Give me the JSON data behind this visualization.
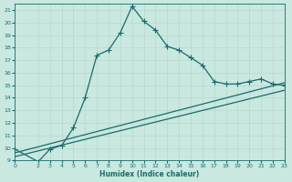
{
  "xlabel": "Humidex (Indice chaleur)",
  "xlim": [
    0,
    23
  ],
  "ylim": [
    9,
    21.5
  ],
  "yticks": [
    9,
    10,
    11,
    12,
    13,
    14,
    15,
    16,
    17,
    18,
    19,
    20,
    21
  ],
  "xticks": [
    0,
    2,
    3,
    4,
    5,
    6,
    7,
    8,
    9,
    10,
    11,
    12,
    13,
    14,
    15,
    16,
    17,
    18,
    19,
    20,
    21,
    22,
    23
  ],
  "bg_color": "#c8e8e0",
  "line_color": "#1a6b6b",
  "grid_color": "#b8d8d0",
  "curve_x": [
    0,
    2,
    3,
    4,
    5,
    6,
    7,
    8,
    9,
    10,
    11,
    12,
    13,
    14,
    15,
    16,
    17,
    18,
    19,
    20,
    21,
    22,
    23
  ],
  "curve_y": [
    9.9,
    8.9,
    9.9,
    10.2,
    11.6,
    14.0,
    17.4,
    17.8,
    19.2,
    21.3,
    20.1,
    19.4,
    18.1,
    17.8,
    17.2,
    16.6,
    15.3,
    15.1,
    15.1,
    15.3,
    15.5,
    15.1,
    15.0
  ],
  "line1_x": [
    0,
    23
  ],
  "line1_y": [
    9.6,
    15.2
  ],
  "line2_x": [
    0,
    23
  ],
  "line2_y": [
    9.3,
    14.6
  ],
  "marker": "P",
  "marker_size": 3,
  "linewidth": 0.9
}
